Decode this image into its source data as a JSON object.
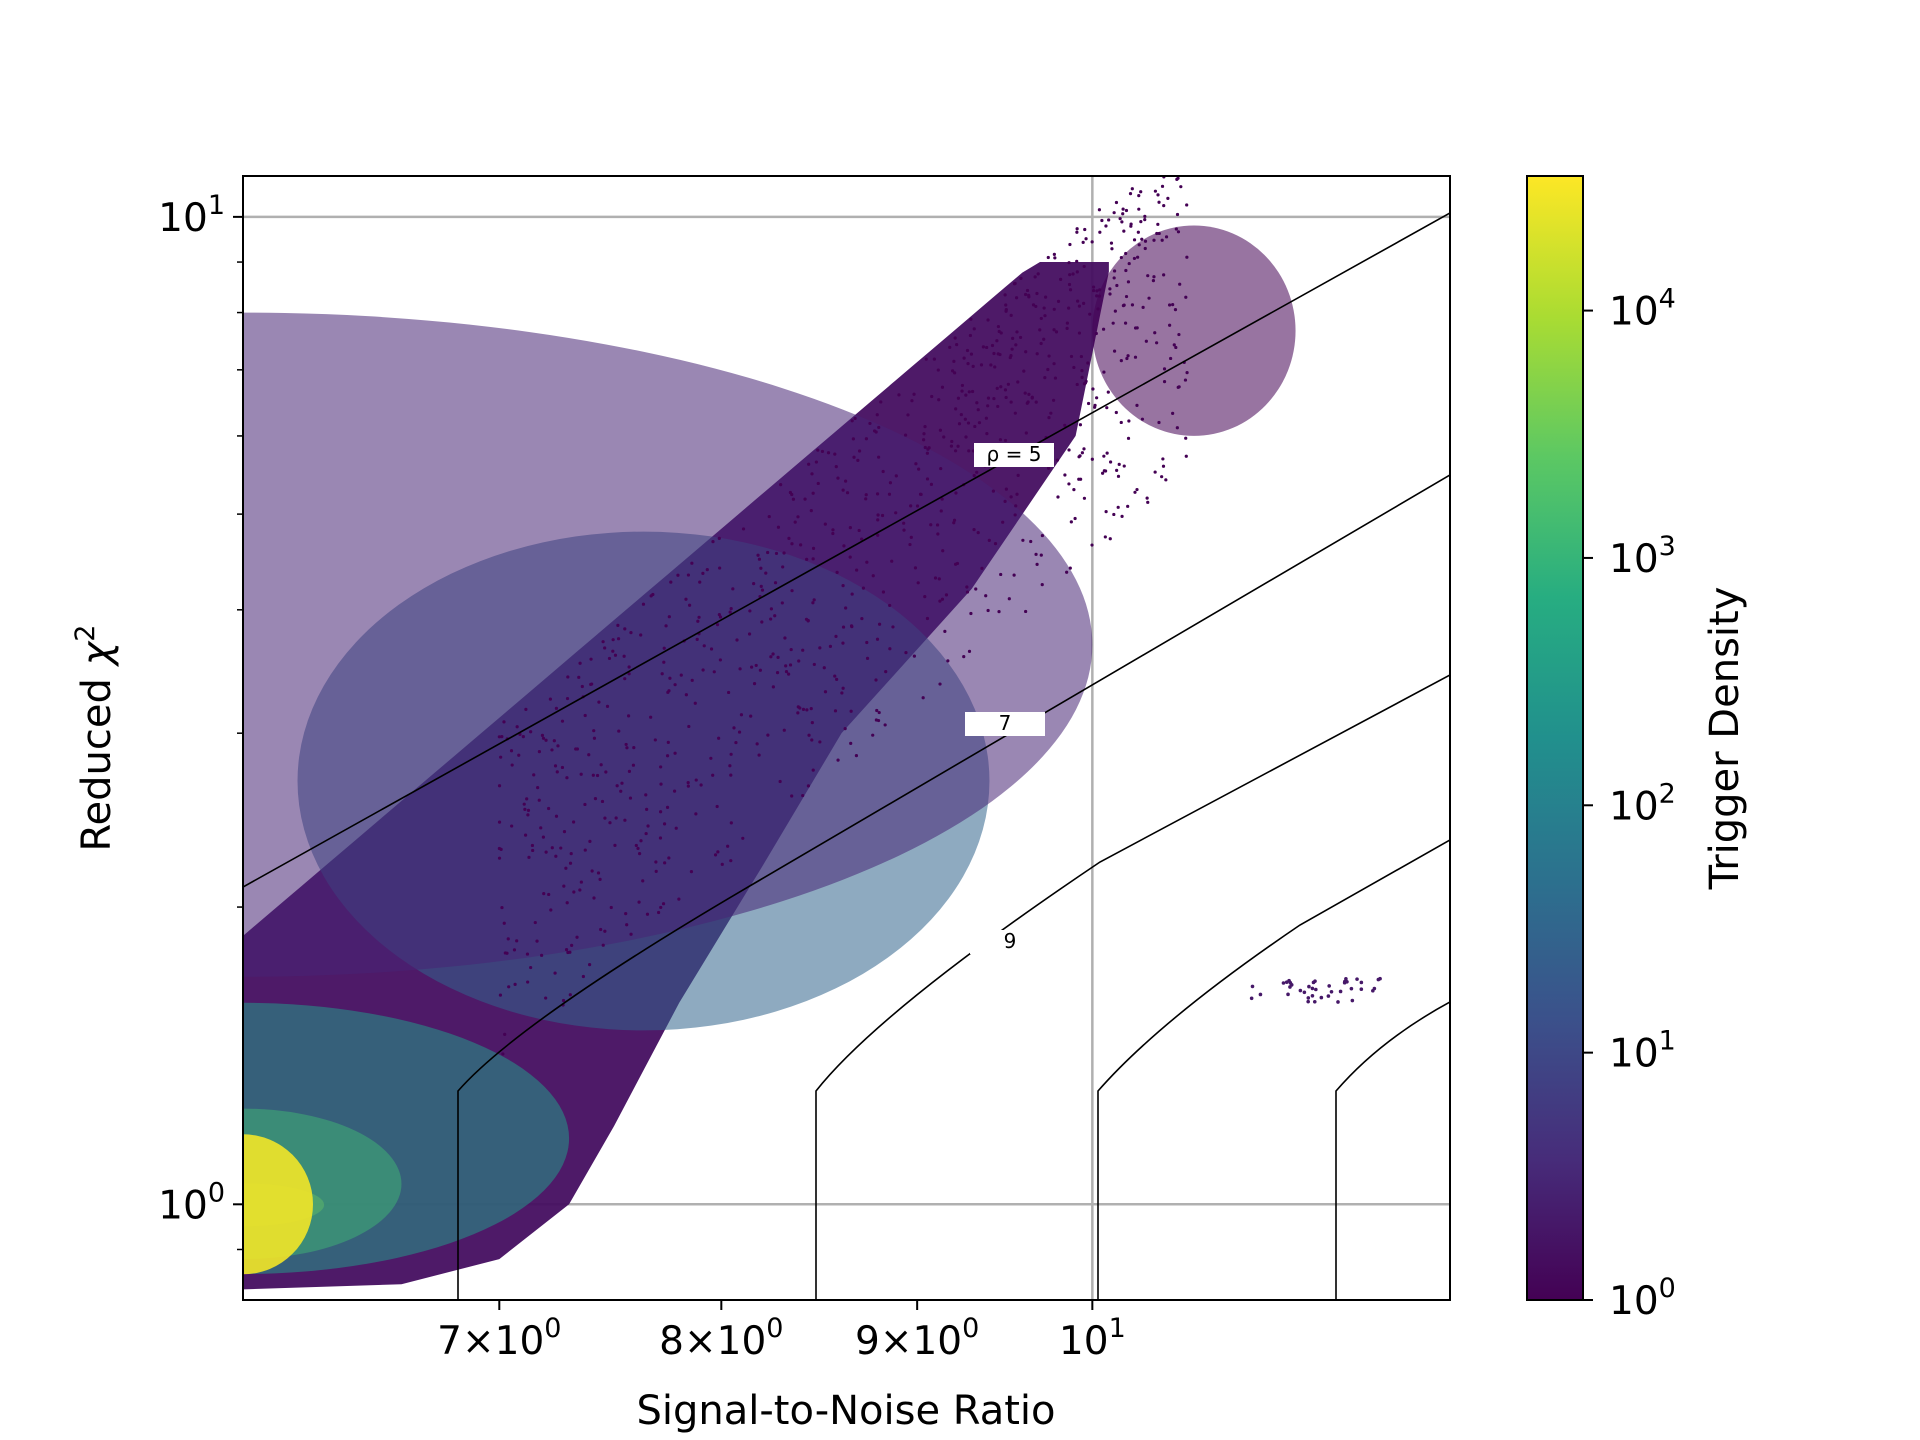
{
  "chart_data": {
    "type": "heatmap",
    "subtype": "hexbin",
    "xlabel": "Signal-to-Noise Ratio",
    "ylabel_text": "Reduced ",
    "ylabel_symbol": "χ",
    "ylabel_exponent": "2",
    "x_scale": "log",
    "y_scale": "log",
    "xlim": [
      6.0,
      12.4
    ],
    "ylim": [
      0.8,
      11.0
    ],
    "grid": true,
    "x_ticks": [
      {
        "value": 7,
        "label": "7×10",
        "exp": "0"
      },
      {
        "value": 8,
        "label": "8×10",
        "exp": "0"
      },
      {
        "value": 9,
        "label": "9×10",
        "exp": "0"
      },
      {
        "value": 10,
        "label": "10",
        "exp": "1"
      }
    ],
    "y_ticks": [
      {
        "value": 1,
        "label": "10",
        "exp": "0"
      },
      {
        "value": 10,
        "label": "10",
        "exp": "1"
      }
    ],
    "colorbar": {
      "label": "Trigger Density",
      "scale": "log",
      "range": [
        1,
        35000
      ],
      "colormap": [
        "#440154",
        "#472c7a",
        "#3b518b",
        "#2c718e",
        "#21908d",
        "#27ad81",
        "#5cc863",
        "#aadc32",
        "#fde725"
      ],
      "ticks": [
        {
          "value": 1,
          "label": "10",
          "exp": "0"
        },
        {
          "value": 10,
          "label": "10",
          "exp": "1"
        },
        {
          "value": 100,
          "label": "10",
          "exp": "2"
        },
        {
          "value": 1000,
          "label": "10",
          "exp": "3"
        },
        {
          "value": 10000,
          "label": "10",
          "exp": "4"
        }
      ]
    },
    "density_regions": [
      {
        "x": [
          6.0,
          6.3
        ],
        "y": [
          0.95,
          1.05
        ],
        "density": 30000
      },
      {
        "x": [
          6.0,
          6.6
        ],
        "y": [
          0.88,
          1.25
        ],
        "density": 3000
      },
      {
        "x": [
          6.0,
          7.3
        ],
        "y": [
          0.85,
          1.6
        ],
        "density": 300
      },
      {
        "x": [
          6.2,
          9.4
        ],
        "y": [
          1.5,
          4.8
        ],
        "density": 30
      },
      {
        "x": [
          6.0,
          10.0
        ],
        "y": [
          1.7,
          8.0
        ],
        "density": 3
      },
      {
        "x": [
          10.0,
          11.3
        ],
        "y": [
          6.0,
          9.8
        ],
        "density": 1
      }
    ],
    "isolated_cluster": {
      "x": [
        11.0,
        11.9
      ],
      "y": [
        1.6,
        1.7
      ],
      "density": 2
    },
    "contours": [
      {
        "label": "ρ = 5",
        "label_x": 10.3,
        "label_y": 5.25
      },
      {
        "label": "7",
        "label_x": 10.3,
        "label_y": 2.45
      },
      {
        "label": "9",
        "label_x": 10.3,
        "label_y": 1.4
      },
      {
        "label": "",
        "label_x": null,
        "label_y": null
      },
      {
        "label": "",
        "label_x": null,
        "label_y": null
      }
    ]
  }
}
